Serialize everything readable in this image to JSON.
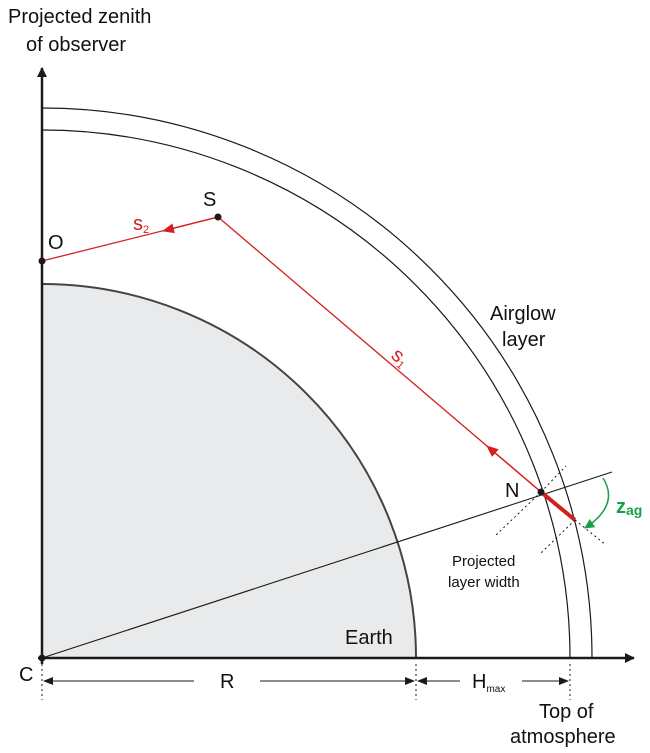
{
  "labels": {
    "zenith_line1": "Projected zenith",
    "zenith_line2": "of observer",
    "O": "O",
    "S": "S",
    "N": "N",
    "C": "C",
    "s2_base": "s",
    "s2_sub": "2",
    "s1_base": "s",
    "s1_sub": "1",
    "airglow_line1": "Airglow",
    "airglow_line2": "layer",
    "zag_base": "z",
    "zag_sub": "ag",
    "proj_line1": "Projected",
    "proj_line2": "layer width",
    "earth": "Earth",
    "R": "R",
    "H_base": "H",
    "H_sub": "max",
    "top_line1": "Top of",
    "top_line2": "atmosphere"
  },
  "colors": {
    "axis": "#1a1a1a",
    "earth_fill": "#e8eaeb",
    "earth_edge": "#444444",
    "ray": "#d41f1f",
    "angle": "#1aa04a"
  }
}
